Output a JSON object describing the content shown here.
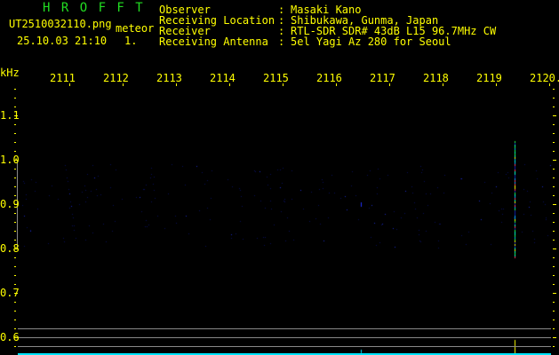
{
  "header": {
    "title": "H R O F F T",
    "filename": "UT2510032110.png",
    "mode": "meteor",
    "datetime": "25.10.03 21:10",
    "count": "1.",
    "fields": [
      {
        "label": "Observer",
        "value": "Masaki Kano"
      },
      {
        "label": "Receiving Location",
        "value": "Shibukawa, Gunma, Japan"
      },
      {
        "label": "Receiver",
        "value": "RTL-SDR SDR# 43dB L15 96.7MHz CW"
      },
      {
        "label": "Receiving Antenna",
        "value": "5el Yagi Az 280 for Seoul"
      }
    ]
  },
  "axes": {
    "y_unit": "kHz",
    "y_ticks": [
      "1.1",
      "1.0",
      "0.9",
      "0.8",
      "0.7",
      "0.6"
    ],
    "x_ticks": [
      "2111",
      "2112",
      "2113",
      "2114",
      "2115",
      "2116",
      "2117",
      "2118",
      "2119",
      "2120."
    ]
  },
  "colors": {
    "text": "#ffff00",
    "title": "#22dd22",
    "grid": "#888888",
    "baseline": "#00e5ff",
    "meteor": "#00ffcc"
  },
  "meteor": {
    "time_label": "2119-2120",
    "freq_range_khz": [
      0.78,
      1.04
    ]
  }
}
